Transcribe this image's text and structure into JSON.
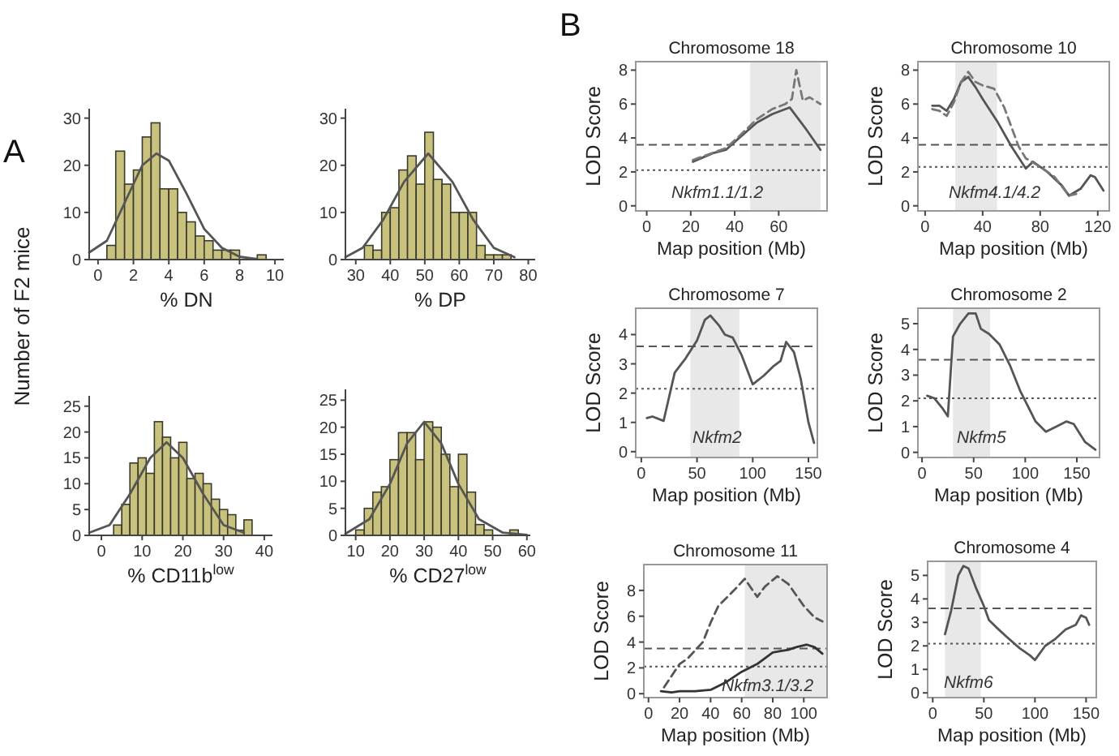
{
  "chart_data": [
    {
      "type": "histogram",
      "ylabel": "Number of F2 mice",
      "xlabel": "% DN",
      "annotations": [
        "A"
      ],
      "bins": [
        0.5,
        1,
        1.5,
        2,
        2.5,
        3,
        3.5,
        4,
        4.5,
        5,
        5.5,
        6,
        6.5,
        7,
        7.5,
        8,
        8.5,
        9,
        9.5,
        10
      ],
      "values": [
        3,
        23,
        16,
        19,
        26,
        29,
        15,
        15,
        10,
        8,
        5,
        4,
        2,
        2,
        2,
        0,
        0,
        1,
        0
      ],
      "color": "#c9c27f",
      "xlim": [
        -0.5,
        10.5
      ],
      "xticks": [
        0,
        2,
        4,
        6,
        8,
        10
      ],
      "ylim": [
        0,
        32
      ],
      "yticks": [
        0,
        10,
        20,
        30
      ],
      "series": [
        {
          "type": "line",
          "color": "#555555",
          "x": [
            -0.5,
            0.5,
            1.5,
            2.5,
            3.3,
            4,
            5,
            6,
            7,
            8,
            9
          ],
          "values": [
            1.5,
            4,
            12,
            20,
            22.5,
            21,
            14,
            6.5,
            2.5,
            0.6,
            0.1
          ]
        }
      ]
    },
    {
      "type": "histogram",
      "xlabel": "% DP",
      "bins": [
        32.5,
        35,
        37.5,
        40,
        42.5,
        45,
        47.5,
        50,
        52.5,
        55,
        57.5,
        60,
        62.5,
        65,
        67.5,
        70,
        72.5,
        75
      ],
      "values": [
        3,
        2,
        10,
        11,
        19,
        22,
        16,
        27,
        17,
        16,
        10,
        10,
        10,
        3,
        1,
        1,
        1
      ],
      "color": "#c9c27f",
      "xlim": [
        27,
        82
      ],
      "xticks": [
        30,
        40,
        50,
        60,
        70,
        80
      ],
      "ylim": [
        0,
        32
      ],
      "yticks": [
        0,
        10,
        20,
        30
      ],
      "series": [
        {
          "type": "line",
          "color": "#555555",
          "x": [
            27,
            32,
            38,
            44,
            51,
            58,
            64,
            70,
            76
          ],
          "values": [
            0.5,
            2.5,
            8.5,
            16.5,
            22.5,
            16.5,
            8.5,
            2.5,
            0.5
          ]
        }
      ]
    },
    {
      "type": "histogram",
      "xlabel": "% CD11b$^{low}$",
      "bins": [
        3,
        5,
        7,
        9,
        11,
        13,
        15,
        17,
        19,
        21,
        23,
        25,
        27,
        29,
        31,
        33,
        35,
        37
      ],
      "values": [
        2,
        6,
        14,
        15,
        12,
        22,
        19,
        15,
        18,
        11,
        12,
        10,
        7,
        5,
        4,
        1,
        3
      ],
      "color": "#c9c27f",
      "xlim": [
        -3,
        42
      ],
      "xticks": [
        0,
        10,
        20,
        30,
        40
      ],
      "ylim": [
        0,
        27
      ],
      "yticks": [
        0,
        5,
        10,
        15,
        20,
        25
      ],
      "series": [
        {
          "type": "line",
          "color": "#555555",
          "x": [
            -3,
            2,
            7,
            12,
            16,
            20,
            25,
            30,
            35
          ],
          "values": [
            0.5,
            2,
            8,
            15,
            18,
            15,
            8,
            2,
            0.5
          ]
        }
      ]
    },
    {
      "type": "histogram",
      "xlabel": "% CD27$^{low}$",
      "bins": [
        10,
        12.5,
        15,
        17.5,
        20,
        22.5,
        25,
        27.5,
        30,
        32.5,
        35,
        37.5,
        40,
        42.5,
        45,
        47.5,
        50,
        52.5,
        55,
        57.5
      ],
      "values": [
        1,
        5,
        8,
        9,
        14,
        19,
        19,
        14,
        21,
        20,
        15,
        9,
        15,
        8,
        2,
        1,
        0,
        0,
        1
      ],
      "color": "#c9c27f",
      "xlim": [
        7,
        61
      ],
      "xticks": [
        10,
        20,
        30,
        40,
        50,
        60
      ],
      "ylim": [
        0,
        27
      ],
      "yticks": [
        0,
        5,
        10,
        15,
        20,
        25
      ],
      "series": [
        {
          "type": "line",
          "color": "#555555",
          "x": [
            7,
            14,
            20,
            25,
            30,
            35,
            40,
            46,
            53,
            60
          ],
          "values": [
            0.3,
            3,
            9.5,
            17,
            21,
            17,
            9.5,
            3,
            0.5,
            0.1
          ]
        }
      ]
    },
    {
      "type": "line",
      "title": "Chromosome 18",
      "xlabel": "Map position (Mb)",
      "ylabel": "LOD Score",
      "annotations": [
        "B",
        "Nkfm1.1/1.2"
      ],
      "xlim": [
        -5,
        82
      ],
      "xticks": [
        0,
        20,
        40,
        60
      ],
      "ylim": [
        -0.3,
        8.5
      ],
      "yticks": [
        0,
        2,
        4,
        6,
        8
      ],
      "bands": [
        {
          "axis": "x",
          "from": 47,
          "to": 79,
          "color": "#e8e8e8"
        }
      ],
      "ref_lines": [
        {
          "axis": "y",
          "value": 3.6,
          "line_style": "dashed"
        },
        {
          "axis": "y",
          "value": 2.1,
          "line_style": "dotted"
        }
      ],
      "series": [
        {
          "color": "#555555",
          "line_style": "solid",
          "x": [
            21,
            30,
            36,
            42,
            50,
            57,
            65,
            72,
            79
          ],
          "values": [
            2.6,
            3.1,
            3.3,
            4.0,
            4.9,
            5.4,
            5.8,
            4.6,
            3.3
          ]
        },
        {
          "color": "#777777",
          "line_style": "dashed",
          "x": [
            21,
            36,
            42,
            50,
            57,
            63,
            66,
            68,
            71,
            74,
            79
          ],
          "values": [
            2.7,
            3.4,
            4.1,
            5.1,
            5.7,
            6.0,
            6.3,
            8.0,
            6.2,
            6.4,
            6.0
          ]
        }
      ]
    },
    {
      "type": "line",
      "title": "Chromosome 10",
      "xlabel": "Map position (Mb)",
      "ylabel": "LOD Score",
      "annotations": [
        "Nkfm4.1/4.2"
      ],
      "xlim": [
        -5,
        128
      ],
      "xticks": [
        0,
        40,
        80,
        120
      ],
      "ylim": [
        -0.3,
        8.5
      ],
      "yticks": [
        0,
        2,
        4,
        6,
        8
      ],
      "bands": [
        {
          "axis": "x",
          "from": 21,
          "to": 50,
          "color": "#e8e8e8"
        }
      ],
      "ref_lines": [
        {
          "axis": "y",
          "value": 3.6,
          "line_style": "dashed"
        },
        {
          "axis": "y",
          "value": 2.3,
          "line_style": "dotted"
        }
      ],
      "series": [
        {
          "color": "#555555",
          "line_style": "solid",
          "x": [
            5,
            10,
            15,
            20,
            25,
            30,
            35,
            40,
            50,
            60,
            70,
            75,
            85,
            95,
            100,
            108,
            115,
            118,
            124
          ],
          "values": [
            5.9,
            5.9,
            5.6,
            6.3,
            7.3,
            7.6,
            7.0,
            6.3,
            5.0,
            3.5,
            2.2,
            2.6,
            2.0,
            1.2,
            0.6,
            1.0,
            1.8,
            1.7,
            0.9
          ]
        },
        {
          "color": "#777777",
          "line_style": "dashed",
          "x": [
            5,
            10,
            15,
            20,
            25,
            30,
            35,
            40,
            48,
            55,
            65,
            70,
            80,
            90,
            100,
            105
          ],
          "values": [
            5.7,
            5.6,
            5.3,
            6.1,
            7.3,
            7.9,
            7.3,
            7.1,
            6.9,
            5.8,
            3.5,
            2.8,
            2.3,
            1.7,
            0.6,
            0.7
          ]
        }
      ]
    },
    {
      "type": "line",
      "title": "Chromosome 7",
      "xlabel": "Map position (Mb)",
      "ylabel": "LOD Score",
      "annotations": [
        "Nkfm2"
      ],
      "xlim": [
        -5,
        158
      ],
      "xticks": [
        0,
        50,
        100,
        150
      ],
      "ylim": [
        -0.2,
        4.9
      ],
      "yticks": [
        0,
        1,
        2,
        3,
        4
      ],
      "bands": [
        {
          "axis": "x",
          "from": 44,
          "to": 88,
          "color": "#e8e8e8"
        }
      ],
      "ref_lines": [
        {
          "axis": "y",
          "value": 3.6,
          "line_style": "dashed"
        },
        {
          "axis": "y",
          "value": 2.15,
          "line_style": "dotted"
        }
      ],
      "series": [
        {
          "color": "#555555",
          "line_style": "solid",
          "x": [
            5,
            10,
            20,
            30,
            40,
            50,
            57,
            62,
            70,
            75,
            82,
            90,
            100,
            110,
            118,
            125,
            130,
            137,
            143,
            150,
            155
          ],
          "values": [
            1.15,
            1.2,
            1.05,
            2.7,
            3.2,
            3.8,
            4.5,
            4.65,
            4.3,
            4.0,
            3.9,
            3.3,
            2.3,
            2.6,
            2.9,
            3.1,
            3.75,
            3.4,
            2.5,
            1.0,
            0.3
          ]
        }
      ]
    },
    {
      "type": "line",
      "title": "Chromosome 2",
      "xlabel": "Map position (Mb)",
      "ylabel": "LOD Score",
      "annotations": [
        "Nkfm5"
      ],
      "xlim": [
        -4,
        172
      ],
      "xticks": [
        0,
        50,
        100,
        150
      ],
      "ylim": [
        -0.2,
        5.6
      ],
      "yticks": [
        0,
        1,
        2,
        3,
        4,
        5
      ],
      "bands": [
        {
          "axis": "x",
          "from": 30,
          "to": 66,
          "color": "#e8e8e8"
        }
      ],
      "ref_lines": [
        {
          "axis": "y",
          "value": 3.6,
          "line_style": "dashed"
        },
        {
          "axis": "y",
          "value": 2.1,
          "line_style": "dotted"
        }
      ],
      "series": [
        {
          "color": "#555555",
          "line_style": "solid",
          "x": [
            5,
            12,
            20,
            25,
            30,
            37,
            45,
            52,
            57,
            65,
            75,
            85,
            95,
            110,
            120,
            130,
            140,
            147,
            158,
            168
          ],
          "values": [
            2.2,
            2.1,
            1.7,
            1.4,
            4.5,
            5.0,
            5.4,
            5.4,
            4.8,
            4.6,
            4.2,
            3.4,
            2.4,
            1.2,
            0.8,
            1.0,
            1.2,
            1.1,
            0.4,
            0.1
          ]
        }
      ]
    },
    {
      "type": "line",
      "title": "Chromosome 11",
      "xlabel": "Map position (Mb)",
      "ylabel": "LOD Score",
      "annotations": [
        "Nkfm3.1/3.2"
      ],
      "xlim": [
        -3,
        115
      ],
      "xticks": [
        0,
        20,
        40,
        60,
        80,
        100
      ],
      "ylim": [
        -0.3,
        10
      ],
      "yticks": [
        0,
        2,
        4,
        6,
        8
      ],
      "bands": [
        {
          "axis": "x",
          "from": 62,
          "to": 115,
          "color": "#e8e8e8"
        }
      ],
      "ref_lines": [
        {
          "axis": "y",
          "value": 3.5,
          "line_style": "dashed"
        },
        {
          "axis": "y",
          "value": 2.1,
          "line_style": "dotted"
        }
      ],
      "series": [
        {
          "color": "#333333",
          "line_style": "solid",
          "x": [
            8,
            15,
            20,
            30,
            40,
            50,
            60,
            70,
            80,
            85,
            90,
            95,
            102,
            107,
            112
          ],
          "values": [
            0.2,
            0.1,
            0.2,
            0.2,
            0.3,
            0.9,
            1.7,
            2.3,
            3.2,
            3.3,
            3.4,
            3.6,
            3.8,
            3.6,
            3.1
          ]
        },
        {
          "color": "#555555",
          "line_style": "dashed",
          "x": [
            10,
            20,
            25,
            35,
            40,
            45,
            55,
            62,
            70,
            75,
            83,
            90,
            100,
            107,
            112
          ],
          "values": [
            0.5,
            2.3,
            2.7,
            4.0,
            5.5,
            6.8,
            8.0,
            8.9,
            7.5,
            8.3,
            9.1,
            8.5,
            6.8,
            5.9,
            5.6
          ]
        }
      ]
    },
    {
      "type": "line",
      "title": "Chromosome 4",
      "xlabel": "Map position (Mb)",
      "ylabel": "LOD Score",
      "annotations": [
        "Nkfm6"
      ],
      "xlim": [
        -5,
        160
      ],
      "xticks": [
        0,
        50,
        100,
        150
      ],
      "ylim": [
        -0.2,
        5.6
      ],
      "yticks": [
        0,
        1,
        2,
        3,
        4,
        5
      ],
      "bands": [
        {
          "axis": "x",
          "from": 12,
          "to": 47,
          "color": "#e8e8e8"
        }
      ],
      "ref_lines": [
        {
          "axis": "y",
          "value": 3.6,
          "line_style": "dashed"
        },
        {
          "axis": "y",
          "value": 2.1,
          "line_style": "dotted"
        }
      ],
      "series": [
        {
          "color": "#555555",
          "line_style": "solid",
          "x": [
            12,
            18,
            25,
            30,
            35,
            42,
            50,
            55,
            62,
            72,
            85,
            95,
            100,
            110,
            120,
            130,
            140,
            145,
            150,
            153
          ],
          "values": [
            2.5,
            3.5,
            5.0,
            5.4,
            5.3,
            4.5,
            3.7,
            3.1,
            2.8,
            2.4,
            1.9,
            1.6,
            1.4,
            2.0,
            2.3,
            2.7,
            2.9,
            3.3,
            3.2,
            2.9
          ]
        }
      ]
    }
  ]
}
